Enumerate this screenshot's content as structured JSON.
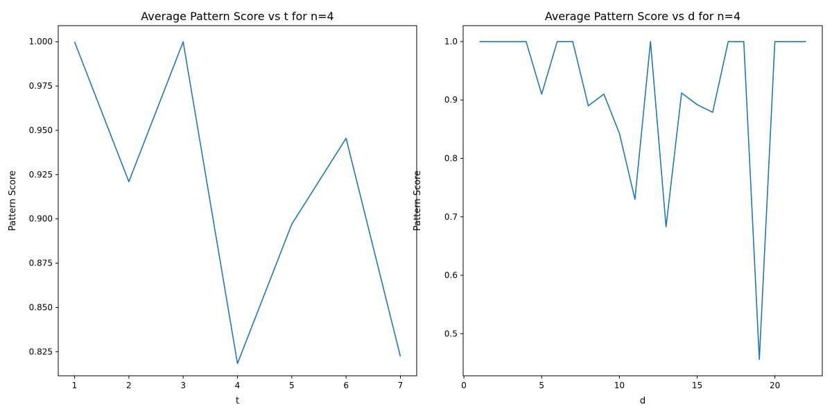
{
  "colors": {
    "series": "#1f77b4"
  },
  "chart_data": [
    {
      "type": "line",
      "title": "Average Pattern Score vs t for n=4",
      "xlabel": "t",
      "ylabel": "Pattern Score",
      "xlim": [
        0.7,
        7.3
      ],
      "ylim": [
        0.8114,
        1.0091
      ],
      "xticks": [
        1,
        2,
        3,
        4,
        5,
        6,
        7
      ],
      "xtick_labels": [
        "1",
        "2",
        "3",
        "4",
        "5",
        "6",
        "7"
      ],
      "yticks": [
        0.825,
        0.85,
        0.875,
        0.9,
        0.925,
        0.95,
        0.975,
        1.0
      ],
      "ytick_labels": [
        "0.825",
        "0.850",
        "0.875",
        "0.900",
        "0.925",
        "0.950",
        "0.975",
        "1.000"
      ],
      "grid": false,
      "series": [
        {
          "x": [
            1,
            2,
            3,
            4,
            5,
            6,
            7
          ],
          "values": [
            1.0,
            0.921,
            1.0,
            0.8183,
            0.897,
            0.9455,
            0.8223
          ]
        }
      ]
    },
    {
      "type": "line",
      "title": "Average Pattern Score vs d for n=4",
      "xlabel": "d",
      "ylabel": "Pattern Score",
      "xlim": [
        -0.05,
        23.05
      ],
      "ylim": [
        0.428,
        1.0272
      ],
      "xticks": [
        0,
        5,
        10,
        15,
        20
      ],
      "xtick_labels": [
        "0",
        "5",
        "10",
        "15",
        "20"
      ],
      "yticks": [
        0.5,
        0.6,
        0.7,
        0.8,
        0.9,
        1.0
      ],
      "ytick_labels": [
        "0.5",
        "0.6",
        "0.7",
        "0.8",
        "0.9",
        "1.0"
      ],
      "grid": false,
      "series": [
        {
          "x": [
            1,
            2,
            3,
            4,
            5,
            6,
            7,
            8,
            9,
            10,
            11,
            12,
            13,
            14,
            15,
            16,
            17,
            18,
            19,
            20,
            21,
            22
          ],
          "values": [
            1.0,
            1.0,
            1.0,
            1.0,
            0.91,
            1.0,
            1.0,
            0.89,
            0.91,
            0.843,
            0.73,
            1.0,
            0.683,
            0.912,
            0.892,
            0.879,
            1.0,
            1.0,
            0.456,
            1.0,
            1.0,
            1.0
          ]
        }
      ]
    }
  ]
}
